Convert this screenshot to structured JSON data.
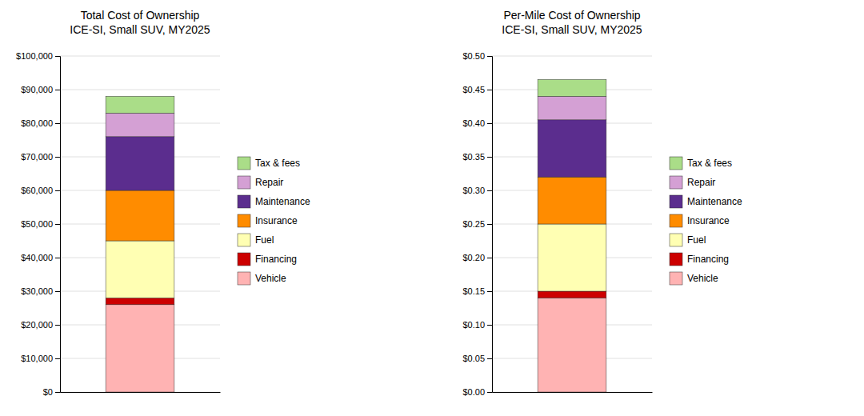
{
  "chart_data": [
    {
      "type": "bar",
      "stacked": true,
      "grid": true,
      "legend": "right",
      "title": "Total Cost of Ownership\nICE-SI, Small SUV, MY2025",
      "categories": [
        null
      ],
      "series": [
        {
          "name": "Vehicle",
          "color": "#FFB3B3",
          "values": [
            26000
          ]
        },
        {
          "name": "Financing",
          "color": "#CC0000",
          "values": [
            2000
          ]
        },
        {
          "name": "Fuel",
          "color": "#FFFFB3",
          "values": [
            17000
          ]
        },
        {
          "name": "Insurance",
          "color": "#FF8C00",
          "values": [
            15000
          ]
        },
        {
          "name": "Maintenance",
          "color": "#5B2D8E",
          "values": [
            16000
          ]
        },
        {
          "name": "Repair",
          "color": "#D4A0D4",
          "values": [
            7000
          ]
        },
        {
          "name": "Tax & fees",
          "color": "#AADD88",
          "values": [
            5000
          ]
        }
      ],
      "ylim": [
        0,
        100000
      ],
      "yticks": [
        {
          "value": 0,
          "label": "$0"
        },
        {
          "value": 10000,
          "label": "$10,000"
        },
        {
          "value": 20000,
          "label": "$20,000"
        },
        {
          "value": 30000,
          "label": "$30,000"
        },
        {
          "value": 40000,
          "label": "$40,000"
        },
        {
          "value": 50000,
          "label": "$50,000"
        },
        {
          "value": 60000,
          "label": "$60,000"
        },
        {
          "value": 70000,
          "label": "$70,000"
        },
        {
          "value": 80000,
          "label": "$80,000"
        },
        {
          "value": 90000,
          "label": "$90,000"
        },
        {
          "value": 100000,
          "label": "$100,000"
        }
      ]
    },
    {
      "type": "bar",
      "stacked": true,
      "grid": true,
      "legend": "right",
      "title": "Per-Mile Cost of Ownership\nICE-SI, Small SUV, MY2025",
      "categories": [
        null
      ],
      "series": [
        {
          "name": "Vehicle",
          "color": "#FFB3B3",
          "values": [
            0.14
          ]
        },
        {
          "name": "Financing",
          "color": "#CC0000",
          "values": [
            0.01
          ]
        },
        {
          "name": "Fuel",
          "color": "#FFFFB3",
          "values": [
            0.1
          ]
        },
        {
          "name": "Insurance",
          "color": "#FF8C00",
          "values": [
            0.07
          ]
        },
        {
          "name": "Maintenance",
          "color": "#5B2D8E",
          "values": [
            0.085
          ]
        },
        {
          "name": "Repair",
          "color": "#D4A0D4",
          "values": [
            0.035
          ]
        },
        {
          "name": "Tax & fees",
          "color": "#AADD88",
          "values": [
            0.025
          ]
        }
      ],
      "ylim": [
        0,
        0.5
      ],
      "yticks": [
        {
          "value": 0.0,
          "label": "$0.00"
        },
        {
          "value": 0.05,
          "label": "$0.05"
        },
        {
          "value": 0.1,
          "label": "$0.10"
        },
        {
          "value": 0.15,
          "label": "$0.15"
        },
        {
          "value": 0.2,
          "label": "$0.20"
        },
        {
          "value": 0.25,
          "label": "$0.25"
        },
        {
          "value": 0.3,
          "label": "$0.30"
        },
        {
          "value": 0.35,
          "label": "$0.35"
        },
        {
          "value": 0.4,
          "label": "$0.40"
        },
        {
          "value": 0.45,
          "label": "$0.45"
        },
        {
          "value": 0.5,
          "label": "$0.50"
        }
      ]
    }
  ]
}
